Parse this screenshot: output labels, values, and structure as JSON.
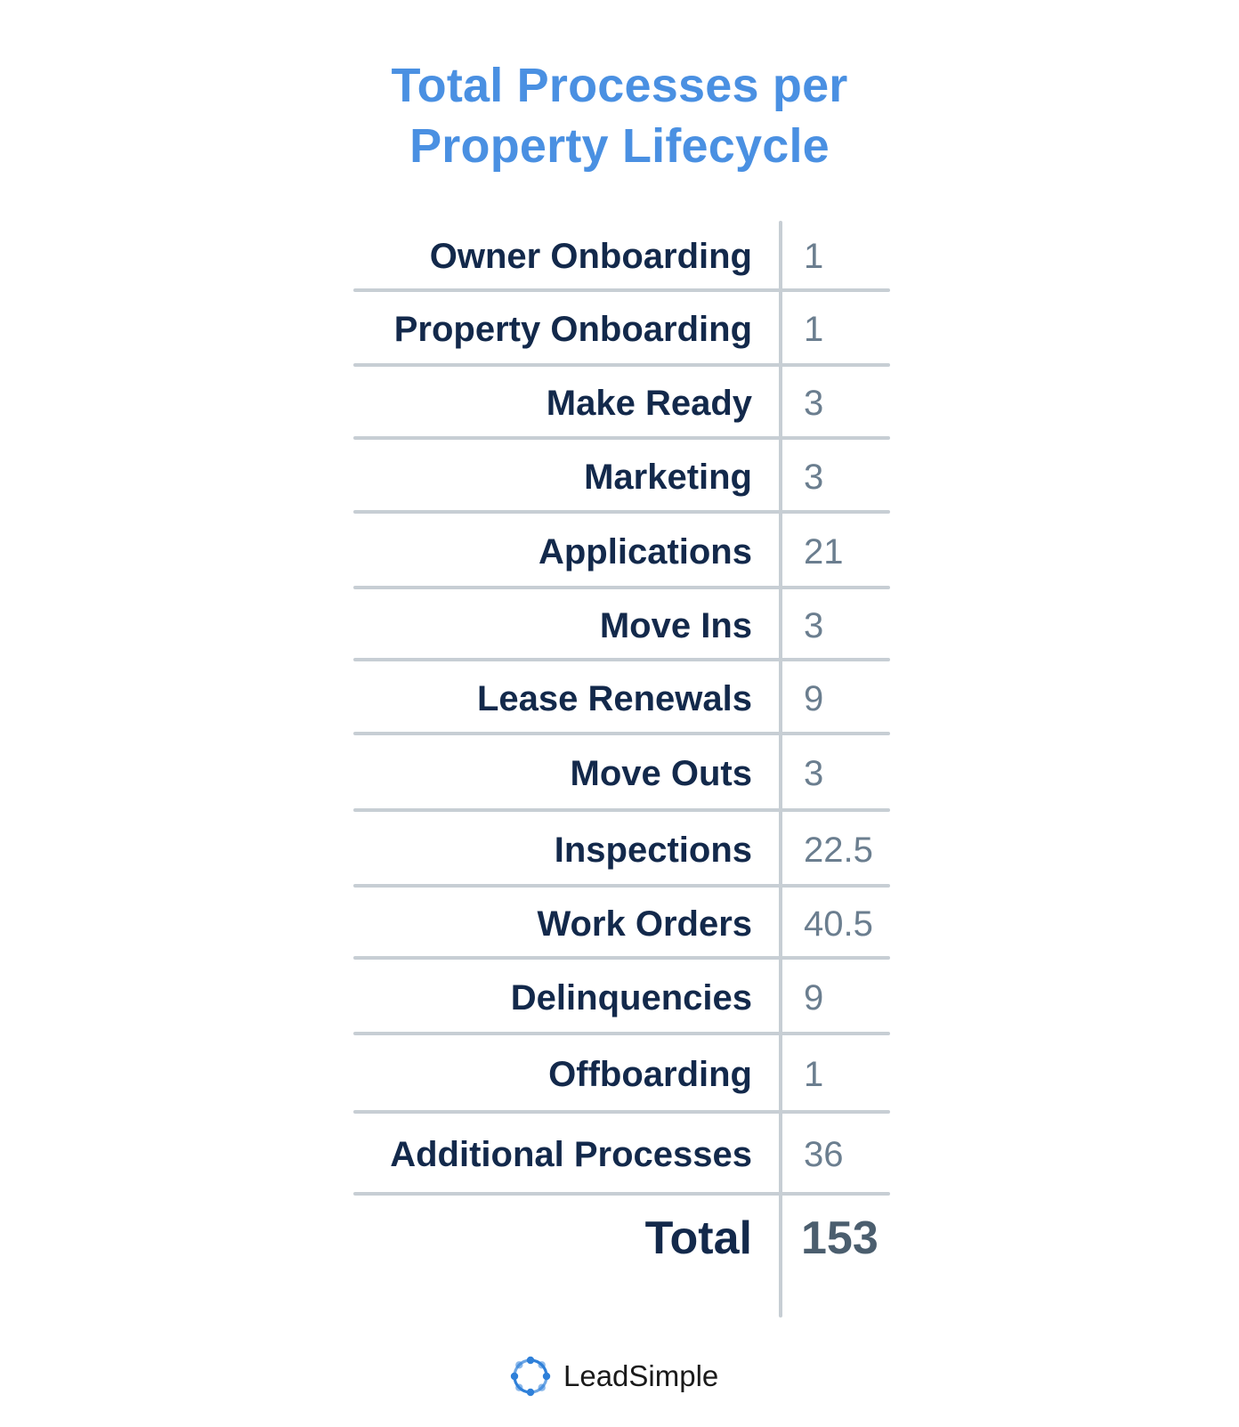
{
  "title_line1": "Total Processes per",
  "title_line2": "Property Lifecycle",
  "colors": {
    "title": "#4a90e2",
    "label": "#13294b",
    "value": "#6b7e8f",
    "rule": "#c7ced4",
    "logo_blue": "#2f80d9"
  },
  "chart_data": {
    "type": "table",
    "title": "Total Processes per Property Lifecycle",
    "columns": [
      "",
      ""
    ],
    "rows": [
      {
        "label": "Owner Onboarding",
        "value": "1"
      },
      {
        "label": "Property Onboarding",
        "value": "1"
      },
      {
        "label": "Make Ready",
        "value": "3"
      },
      {
        "label": "Marketing",
        "value": "3"
      },
      {
        "label": "Applications",
        "value": "21"
      },
      {
        "label": "Move Ins",
        "value": "3"
      },
      {
        "label": "Lease Renewals",
        "value": "9"
      },
      {
        "label": "Move Outs",
        "value": "3"
      },
      {
        "label": "Inspections",
        "value": "22.5"
      },
      {
        "label": "Work Orders",
        "value": "40.5"
      },
      {
        "label": "Delinquencies",
        "value": "9"
      },
      {
        "label": "Offboarding",
        "value": "1"
      },
      {
        "label": "Additional Processes",
        "value": "36"
      }
    ],
    "total": {
      "label": "Total",
      "value": "153"
    }
  },
  "footer": {
    "brand": "LeadSimple",
    "icon": "leadsimple-logo-icon"
  }
}
